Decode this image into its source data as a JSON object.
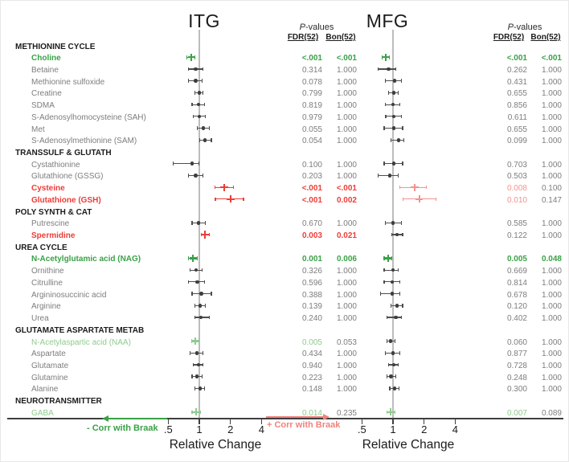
{
  "figure": {
    "panel_titles": [
      "ITG",
      "MFG"
    ],
    "pvalues_p": "P",
    "pvalues_rest": "-values",
    "fdr_header": "FDR(52)",
    "bon_header": "Bon(52)",
    "xlabel": "Relative Change",
    "x_tick_labels": [
      ".5",
      "1",
      "2",
      "4"
    ],
    "legend_neg": "- Corr with Braak",
    "legend_pos": "+ Corr with Braak"
  },
  "colors": {
    "green": "#3aa147",
    "green_light": "#8fcb8f",
    "red": "#ee3c38",
    "red_light": "#f4928e",
    "gray_text": "#7d7d7d",
    "gray_marker": "#3d3d3d",
    "gray_bar": "#4d4d4d",
    "ink": "#1b1b1b"
  },
  "chart_data": {
    "type": "scatter",
    "subtype": "forest-plot",
    "x_scale": "log2",
    "x_ticks": [
      0.5,
      1,
      2,
      4
    ],
    "xlabel": "Relative Change",
    "panels": [
      "ITG",
      "MFG"
    ],
    "pvalue_columns": [
      "FDR(52)",
      "Bon(52)"
    ],
    "groups": [
      {
        "name": "METHIONINE CYCLE",
        "rows": [
          {
            "label": "Choline",
            "label_style": "green",
            "itg": {
              "rc": 0.84,
              "lo": 0.76,
              "hi": 0.9,
              "marker": "green",
              "fdr": "<.001",
              "fdr_style": "green",
              "bon": "<.001",
              "bon_style": "green"
            },
            "mfg": {
              "rc": 0.85,
              "lo": 0.79,
              "hi": 0.92,
              "marker": "green",
              "fdr": "<.001",
              "fdr_style": "green",
              "bon": "<.001",
              "bon_style": "green"
            }
          },
          {
            "label": "Betaine",
            "label_style": "gray",
            "itg": {
              "rc": 0.92,
              "lo": 0.78,
              "hi": 1.09,
              "marker": "gray",
              "fdr": "0.314",
              "fdr_style": "gray",
              "bon": "1.000",
              "bon_style": "gray"
            },
            "mfg": {
              "rc": 0.91,
              "lo": 0.72,
              "hi": 1.06,
              "marker": "gray",
              "fdr": "0.262",
              "fdr_style": "gray",
              "bon": "1.000",
              "bon_style": "gray"
            }
          },
          {
            "label": "Methionine sulfoxide",
            "label_style": "gray",
            "itg": {
              "rc": 0.92,
              "lo": 0.79,
              "hi": 1.06,
              "marker": "gray",
              "fdr": "0.078",
              "fdr_style": "gray",
              "bon": "1.000",
              "bon_style": "gray"
            },
            "mfg": {
              "rc": 1.04,
              "lo": 0.84,
              "hi": 1.2,
              "marker": "gray",
              "fdr": "0.431",
              "fdr_style": "gray",
              "bon": "1.000",
              "bon_style": "gray"
            }
          },
          {
            "label": "Creatine",
            "label_style": "gray",
            "itg": {
              "rc": 1.0,
              "lo": 0.91,
              "hi": 1.09,
              "marker": "gray",
              "fdr": "0.799",
              "fdr_style": "gray",
              "bon": "1.000",
              "bon_style": "gray"
            },
            "mfg": {
              "rc": 1.02,
              "lo": 0.91,
              "hi": 1.13,
              "marker": "gray",
              "fdr": "0.655",
              "fdr_style": "gray",
              "bon": "1.000",
              "bon_style": "gray"
            }
          },
          {
            "label": "SDMA",
            "label_style": "gray",
            "itg": {
              "rc": 0.98,
              "lo": 0.85,
              "hi": 1.13,
              "marker": "gray",
              "fdr": "0.819",
              "fdr_style": "gray",
              "bon": "1.000",
              "bon_style": "gray"
            },
            "mfg": {
              "rc": 1.0,
              "lo": 0.84,
              "hi": 1.17,
              "marker": "gray",
              "fdr": "0.856",
              "fdr_style": "gray",
              "bon": "1.000",
              "bon_style": "gray"
            }
          },
          {
            "label": "S-Adenosylhomocysteine (SAH)",
            "label_style": "gray",
            "itg": {
              "rc": 1.0,
              "lo": 0.87,
              "hi": 1.15,
              "marker": "gray",
              "fdr": "0.979",
              "fdr_style": "gray",
              "bon": "1.000",
              "bon_style": "gray"
            },
            "mfg": {
              "rc": 1.02,
              "lo": 0.85,
              "hi": 1.2,
              "marker": "gray",
              "fdr": "0.611",
              "fdr_style": "gray",
              "bon": "1.000",
              "bon_style": "gray"
            }
          },
          {
            "label": "Met",
            "label_style": "gray",
            "itg": {
              "rc": 1.09,
              "lo": 0.96,
              "hi": 1.26,
              "marker": "gray",
              "fdr": "0.055",
              "fdr_style": "gray",
              "bon": "1.000",
              "bon_style": "gray"
            },
            "mfg": {
              "rc": 1.02,
              "lo": 0.82,
              "hi": 1.24,
              "marker": "gray",
              "fdr": "0.655",
              "fdr_style": "gray",
              "bon": "1.000",
              "bon_style": "gray"
            }
          },
          {
            "label": "S-Adenosylmethionine (SAM)",
            "label_style": "gray",
            "itg": {
              "rc": 1.13,
              "lo": 1.0,
              "hi": 1.31,
              "marker": "gray",
              "fdr": "0.054",
              "fdr_style": "gray",
              "bon": "1.000",
              "bon_style": "gray"
            },
            "mfg": {
              "rc": 1.13,
              "lo": 0.95,
              "hi": 1.28,
              "marker": "gray",
              "fdr": "0.099",
              "fdr_style": "gray",
              "bon": "1.000",
              "bon_style": "gray"
            }
          }
        ]
      },
      {
        "name": "TRANSSULF & GLUTATH",
        "rows": [
          {
            "label": "Cystathionine",
            "label_style": "gray",
            "itg": {
              "rc": 0.85,
              "lo": 0.56,
              "hi": 1.0,
              "marker": "gray",
              "fdr": "0.100",
              "fdr_style": "gray",
              "bon": "1.000",
              "bon_style": "gray"
            },
            "mfg": {
              "rc": 1.02,
              "lo": 0.82,
              "hi": 1.24,
              "marker": "gray",
              "fdr": "0.703",
              "fdr_style": "gray",
              "bon": "1.000",
              "bon_style": "gray"
            }
          },
          {
            "label": "Glutathione (GSSG)",
            "label_style": "gray",
            "itg": {
              "rc": 0.92,
              "lo": 0.78,
              "hi": 1.09,
              "marker": "gray",
              "fdr": "0.203",
              "fdr_style": "gray",
              "bon": "1.000",
              "bon_style": "gray"
            },
            "mfg": {
              "rc": 0.93,
              "lo": 0.72,
              "hi": 1.13,
              "marker": "gray",
              "fdr": "0.503",
              "fdr_style": "gray",
              "bon": "1.000",
              "bon_style": "gray"
            }
          },
          {
            "label": "Cysteine",
            "label_style": "red",
            "itg": {
              "rc": 1.74,
              "lo": 1.41,
              "hi": 2.16,
              "marker": "red",
              "fdr": "<.001",
              "fdr_style": "red",
              "bon": "<.001",
              "bon_style": "red"
            },
            "mfg": {
              "rc": 1.62,
              "lo": 1.17,
              "hi": 2.12,
              "marker": "red_light",
              "fdr": "0.008",
              "fdr_style": "red_light",
              "bon": "0.100",
              "bon_style": "gray"
            }
          },
          {
            "label": "Glutathione (GSH)",
            "label_style": "red",
            "itg": {
              "rc": 2.01,
              "lo": 1.43,
              "hi": 2.68,
              "marker": "red",
              "fdr": "<.001",
              "fdr_style": "red",
              "bon": "0.002",
              "bon_style": "red"
            },
            "mfg": {
              "rc": 1.8,
              "lo": 1.24,
              "hi": 2.63,
              "marker": "red_light",
              "fdr": "0.010",
              "fdr_style": "red_light",
              "bon": "0.147",
              "bon_style": "gray"
            }
          }
        ]
      },
      {
        "name": "POLY SYNTH & CAT",
        "rows": [
          {
            "label": "Putrescine",
            "label_style": "gray",
            "itg": {
              "rc": 0.98,
              "lo": 0.85,
              "hi": 1.15,
              "marker": "gray",
              "fdr": "0.670",
              "fdr_style": "gray",
              "bon": "1.000",
              "bon_style": "gray"
            },
            "mfg": {
              "rc": 1.0,
              "lo": 0.84,
              "hi": 1.2,
              "marker": "gray",
              "fdr": "0.585",
              "fdr_style": "gray",
              "bon": "1.000",
              "bon_style": "gray"
            }
          },
          {
            "label": "Spermidine",
            "label_style": "red",
            "itg": {
              "rc": 1.13,
              "lo": 1.04,
              "hi": 1.26,
              "marker": "red",
              "fdr": "0.003",
              "fdr_style": "red",
              "bon": "0.021",
              "bon_style": "red"
            },
            "mfg": {
              "rc": 1.09,
              "lo": 0.98,
              "hi": 1.24,
              "marker": "gray",
              "fdr": "0.122",
              "fdr_style": "gray",
              "bon": "1.000",
              "bon_style": "gray"
            }
          }
        ]
      },
      {
        "name": "UREA CYCLE",
        "rows": [
          {
            "label": "N-Acetylglutamic acid (NAG)",
            "label_style": "green",
            "itg": {
              "rc": 0.87,
              "lo": 0.79,
              "hi": 0.95,
              "marker": "green",
              "fdr": "0.001",
              "fdr_style": "green",
              "bon": "0.006",
              "bon_style": "green"
            },
            "mfg": {
              "rc": 0.9,
              "lo": 0.82,
              "hi": 0.98,
              "marker": "green",
              "fdr": "0.005",
              "fdr_style": "green",
              "bon": "0.048",
              "bon_style": "green"
            }
          },
          {
            "label": "Ornithine",
            "label_style": "gray",
            "itg": {
              "rc": 0.93,
              "lo": 0.81,
              "hi": 1.07,
              "marker": "gray",
              "fdr": "0.326",
              "fdr_style": "gray",
              "bon": "1.000",
              "bon_style": "gray"
            },
            "mfg": {
              "rc": 1.0,
              "lo": 0.82,
              "hi": 1.13,
              "marker": "gray",
              "fdr": "0.669",
              "fdr_style": "gray",
              "bon": "1.000",
              "bon_style": "gray"
            }
          },
          {
            "label": "Citrulline",
            "label_style": "gray",
            "itg": {
              "rc": 0.96,
              "lo": 0.79,
              "hi": 1.13,
              "marker": "gray",
              "fdr": "0.596",
              "fdr_style": "gray",
              "bon": "1.000",
              "bon_style": "gray"
            },
            "mfg": {
              "rc": 0.98,
              "lo": 0.82,
              "hi": 1.17,
              "marker": "gray",
              "fdr": "0.814",
              "fdr_style": "gray",
              "bon": "1.000",
              "bon_style": "gray"
            }
          },
          {
            "label": "Argininosuccinic acid",
            "label_style": "gray",
            "itg": {
              "rc": 1.05,
              "lo": 0.85,
              "hi": 1.31,
              "marker": "gray",
              "fdr": "0.388",
              "fdr_style": "gray",
              "bon": "1.000",
              "bon_style": "gray"
            },
            "mfg": {
              "rc": 0.98,
              "lo": 0.76,
              "hi": 1.17,
              "marker": "gray",
              "fdr": "0.678",
              "fdr_style": "gray",
              "bon": "1.000",
              "bon_style": "gray"
            }
          },
          {
            "label": "Arginine",
            "label_style": "gray",
            "itg": {
              "rc": 1.02,
              "lo": 0.91,
              "hi": 1.15,
              "marker": "gray",
              "fdr": "0.139",
              "fdr_style": "gray",
              "bon": "1.000",
              "bon_style": "gray"
            },
            "mfg": {
              "rc": 1.09,
              "lo": 0.95,
              "hi": 1.24,
              "marker": "gray",
              "fdr": "0.120",
              "fdr_style": "gray",
              "bon": "1.000",
              "bon_style": "gray"
            }
          },
          {
            "label": "Urea",
            "label_style": "gray",
            "itg": {
              "rc": 1.04,
              "lo": 0.91,
              "hi": 1.26,
              "marker": "gray",
              "fdr": "0.240",
              "fdr_style": "gray",
              "bon": "1.000",
              "bon_style": "gray"
            },
            "mfg": {
              "rc": 1.06,
              "lo": 0.87,
              "hi": 1.2,
              "marker": "gray",
              "fdr": "0.402",
              "fdr_style": "gray",
              "bon": "1.000",
              "bon_style": "gray"
            }
          }
        ]
      },
      {
        "name": "GLUTAMATE ASPARTATE METAB",
        "rows": [
          {
            "label": "N-Acetylaspartic acid (NAA)",
            "label_style": "green_light",
            "itg": {
              "rc": 0.92,
              "lo": 0.84,
              "hi": 1.0,
              "marker": "green_light",
              "fdr": "0.005",
              "fdr_style": "green_light",
              "bon": "0.053",
              "bon_style": "gray"
            },
            "mfg": {
              "rc": 0.95,
              "lo": 0.87,
              "hi": 1.04,
              "marker": "gray",
              "fdr": "0.060",
              "fdr_style": "gray",
              "bon": "1.000",
              "bon_style": "gray"
            }
          },
          {
            "label": "Aspartate",
            "label_style": "gray",
            "itg": {
              "rc": 0.95,
              "lo": 0.81,
              "hi": 1.09,
              "marker": "gray",
              "fdr": "0.434",
              "fdr_style": "gray",
              "bon": "1.000",
              "bon_style": "gray"
            },
            "mfg": {
              "rc": 1.0,
              "lo": 0.84,
              "hi": 1.17,
              "marker": "gray",
              "fdr": "0.877",
              "fdr_style": "gray",
              "bon": "1.000",
              "bon_style": "gray"
            }
          },
          {
            "label": "Glutamate",
            "label_style": "gray",
            "itg": {
              "rc": 0.98,
              "lo": 0.88,
              "hi": 1.09,
              "marker": "gray",
              "fdr": "0.940",
              "fdr_style": "gray",
              "bon": "1.000",
              "bon_style": "gray"
            },
            "mfg": {
              "rc": 1.02,
              "lo": 0.91,
              "hi": 1.13,
              "marker": "gray",
              "fdr": "0.728",
              "fdr_style": "gray",
              "bon": "1.000",
              "bon_style": "gray"
            }
          },
          {
            "label": "Glutamine",
            "label_style": "gray",
            "itg": {
              "rc": 0.95,
              "lo": 0.85,
              "hi": 1.06,
              "marker": "gray",
              "fdr": "0.223",
              "fdr_style": "gray",
              "bon": "1.000",
              "bon_style": "gray"
            },
            "mfg": {
              "rc": 0.96,
              "lo": 0.87,
              "hi": 1.07,
              "marker": "gray",
              "fdr": "0.248",
              "fdr_style": "gray",
              "bon": "1.000",
              "bon_style": "gray"
            }
          },
          {
            "label": "Alanine",
            "label_style": "gray",
            "itg": {
              "rc": 1.02,
              "lo": 0.91,
              "hi": 1.13,
              "marker": "gray",
              "fdr": "0.148",
              "fdr_style": "gray",
              "bon": "1.000",
              "bon_style": "gray"
            },
            "mfg": {
              "rc": 1.04,
              "lo": 0.93,
              "hi": 1.15,
              "marker": "gray",
              "fdr": "0.300",
              "fdr_style": "gray",
              "bon": "1.000",
              "bon_style": "gray"
            }
          }
        ]
      },
      {
        "name": "NEUROTRANSMITTER",
        "rows": [
          {
            "label": "GABA",
            "label_style": "green_light",
            "itg": {
              "rc": 0.93,
              "lo": 0.85,
              "hi": 1.02,
              "marker": "green_light",
              "fdr": "0.014",
              "fdr_style": "green_light",
              "bon": "0.235",
              "bon_style": "gray"
            },
            "mfg": {
              "rc": 0.95,
              "lo": 0.87,
              "hi": 1.04,
              "marker": "green_light",
              "fdr": "0.007",
              "fdr_style": "green_light",
              "bon": "0.089",
              "bon_style": "gray"
            }
          }
        ]
      }
    ]
  }
}
